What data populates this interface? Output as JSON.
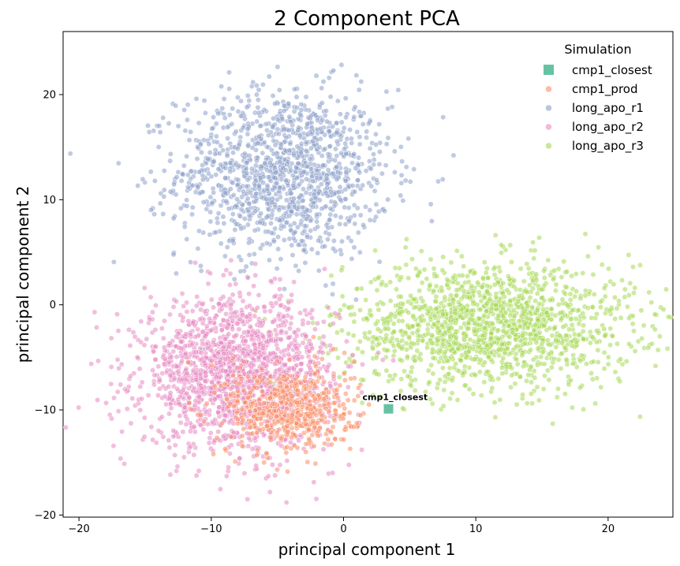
{
  "chart_data": {
    "type": "scatter",
    "title": "2 Component PCA",
    "xlabel": "principal component 1",
    "ylabel": "principal component 2",
    "xlim": [
      -21.2,
      24.9
    ],
    "ylim": [
      -20.2,
      26.0
    ],
    "xticks": [
      -20,
      -10,
      0,
      10,
      20
    ],
    "yticks": [
      -20,
      -10,
      0,
      10,
      20
    ],
    "tick_labels_x": [
      "−20",
      "−10",
      "0",
      "10",
      "20"
    ],
    "tick_labels_y": [
      "−20",
      "−10",
      "0",
      "10",
      "20"
    ],
    "grid": false,
    "legend": {
      "title": "Simulation",
      "placement": "top-right"
    },
    "series": [
      {
        "name": "cmp1_closest",
        "color": "#66c2a5",
        "marker": "square",
        "points": [
          [
            3.4,
            -9.9
          ]
        ]
      },
      {
        "name": "cmp1_prod",
        "color": "#fc8d62",
        "marker": "circle",
        "cluster": {
          "center": [
            -4.0,
            -10.0
          ],
          "spread": [
            2.4,
            2.1
          ],
          "count": 520
        }
      },
      {
        "name": "long_apo_r1",
        "color": "#8da0cb",
        "marker": "circle",
        "cluster": {
          "center": [
            -4.5,
            12.5
          ],
          "spread": [
            4.0,
            4.0
          ],
          "count": 1300
        }
      },
      {
        "name": "long_apo_r2",
        "color": "#e78ac3",
        "marker": "circle",
        "cluster": {
          "center": [
            -8.0,
            -6.5
          ],
          "spread": [
            3.6,
            3.5
          ],
          "count": 1700
        }
      },
      {
        "name": "long_apo_r3",
        "color": "#a6d854",
        "marker": "circle",
        "cluster": {
          "center": [
            11.0,
            -2.0
          ],
          "spread": [
            5.5,
            3.0
          ],
          "count": 1500
        }
      }
    ],
    "annotations": [
      {
        "text": "cmp1_closest",
        "x": 3.4,
        "y": -9.9
      }
    ]
  }
}
